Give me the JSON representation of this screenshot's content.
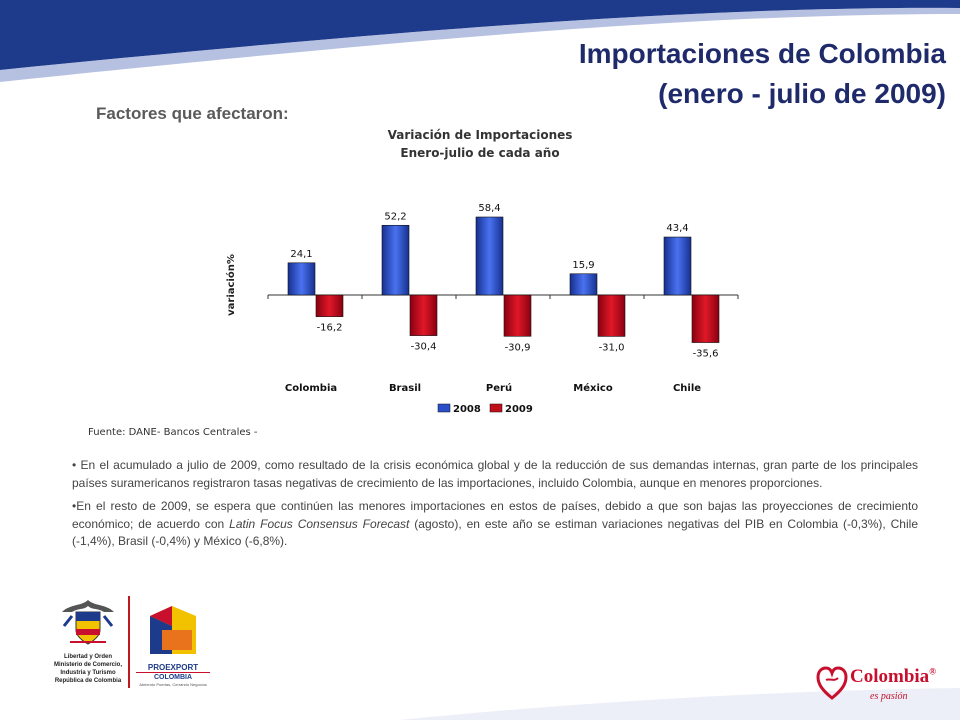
{
  "title_line1": "Importaciones de Colombia",
  "title_line2": "(enero - julio de 2009)",
  "subtitle": "Factores que afectaron:",
  "chart_data": {
    "type": "bar",
    "title": "Variación de Importaciones",
    "subtitle": "Enero-julio de cada año",
    "xlabel": "",
    "ylabel": "variación%",
    "categories": [
      "Colombia",
      "Brasil",
      "Perú",
      "México",
      "Chile"
    ],
    "series": [
      {
        "name": "2008",
        "values": [
          24.1,
          52.2,
          58.4,
          15.9,
          43.4
        ],
        "labels": [
          "24,1",
          "52,2",
          "58,4",
          "15,9",
          "43,4"
        ],
        "color": "#2a4fc9"
      },
      {
        "name": "2009",
        "values": [
          -16.2,
          -30.4,
          -30.9,
          -31.0,
          -35.6
        ],
        "labels": [
          "-16,2",
          "-30,4",
          "-30,9",
          "-31,0",
          "-35,6"
        ],
        "color": "#c0101c"
      }
    ],
    "ylim": [
      -40,
      60
    ],
    "grid": false,
    "legend": "bottom"
  },
  "source": "Fuente: DANE- Bancos Centrales -",
  "bullet1": "• En el acumulado a julio de 2009, como resultado de la crisis económica global y de la reducción de sus demandas internas, gran parte de los principales países suramericanos registraron tasas negativas de crecimiento de las importaciones, incluido Colombia, aunque en menores proporciones.",
  "bullet2_a": "•En el resto de 2009, se espera que continúen las menores importaciones en estos de países, debido a que son bajas las proyecciones de crecimiento económico; de acuerdo con ",
  "bullet2_em": "Latin Focus Consensus Forecast",
  "bullet2_b": " (agosto), en  este año se estiman variaciones negativas del PIB en Colombia (-0,3%), Chile (-1,4%), Brasil (-0,4%) y México (-6,8%).",
  "logo_mincomercio": {
    "line1": "Libertad y Orden",
    "line2": "Ministerio de Comercio,",
    "line3": "Industria y Turismo",
    "line4": "República de Colombia"
  },
  "logo_proexport": {
    "line1": "PROEXPORT",
    "line2": "COLOMBIA",
    "tagline": "Abriendo Puertas, Cerrando Negocios"
  },
  "logo_colombia": {
    "name": "Colombia",
    "reg": "®",
    "tagline": "es pasión"
  },
  "colors": {
    "title": "#1f2a6b",
    "swoosh_blue": "#1e3a8a",
    "swoosh_yellow": "#f2c200",
    "swoosh_red": "#c8102e"
  }
}
